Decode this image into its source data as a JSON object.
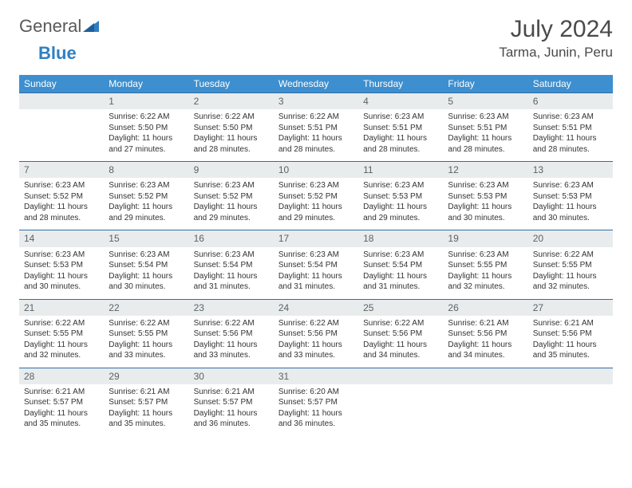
{
  "brand": {
    "word1": "General",
    "word2": "Blue"
  },
  "title": "July 2024",
  "location": "Tarma, Junin, Peru",
  "columns": [
    "Sunday",
    "Monday",
    "Tuesday",
    "Wednesday",
    "Thursday",
    "Friday",
    "Saturday"
  ],
  "colors": {
    "header_bg": "#3d8fcf",
    "header_text": "#ffffff",
    "daynum_bg": "#e9eced",
    "daynum_text": "#5c6266",
    "row_border": "#2f6ea6",
    "text": "#333333",
    "brand_gray": "#58595b",
    "brand_blue": "#2f7fc2",
    "page_bg": "#ffffff"
  },
  "weeks": [
    [
      {
        "n": ""
      },
      {
        "n": "1",
        "sr": "Sunrise: 6:22 AM",
        "ss": "Sunset: 5:50 PM",
        "d1": "Daylight: 11 hours",
        "d2": "and 27 minutes."
      },
      {
        "n": "2",
        "sr": "Sunrise: 6:22 AM",
        "ss": "Sunset: 5:50 PM",
        "d1": "Daylight: 11 hours",
        "d2": "and 28 minutes."
      },
      {
        "n": "3",
        "sr": "Sunrise: 6:22 AM",
        "ss": "Sunset: 5:51 PM",
        "d1": "Daylight: 11 hours",
        "d2": "and 28 minutes."
      },
      {
        "n": "4",
        "sr": "Sunrise: 6:23 AM",
        "ss": "Sunset: 5:51 PM",
        "d1": "Daylight: 11 hours",
        "d2": "and 28 minutes."
      },
      {
        "n": "5",
        "sr": "Sunrise: 6:23 AM",
        "ss": "Sunset: 5:51 PM",
        "d1": "Daylight: 11 hours",
        "d2": "and 28 minutes."
      },
      {
        "n": "6",
        "sr": "Sunrise: 6:23 AM",
        "ss": "Sunset: 5:51 PM",
        "d1": "Daylight: 11 hours",
        "d2": "and 28 minutes."
      }
    ],
    [
      {
        "n": "7",
        "sr": "Sunrise: 6:23 AM",
        "ss": "Sunset: 5:52 PM",
        "d1": "Daylight: 11 hours",
        "d2": "and 28 minutes."
      },
      {
        "n": "8",
        "sr": "Sunrise: 6:23 AM",
        "ss": "Sunset: 5:52 PM",
        "d1": "Daylight: 11 hours",
        "d2": "and 29 minutes."
      },
      {
        "n": "9",
        "sr": "Sunrise: 6:23 AM",
        "ss": "Sunset: 5:52 PM",
        "d1": "Daylight: 11 hours",
        "d2": "and 29 minutes."
      },
      {
        "n": "10",
        "sr": "Sunrise: 6:23 AM",
        "ss": "Sunset: 5:52 PM",
        "d1": "Daylight: 11 hours",
        "d2": "and 29 minutes."
      },
      {
        "n": "11",
        "sr": "Sunrise: 6:23 AM",
        "ss": "Sunset: 5:53 PM",
        "d1": "Daylight: 11 hours",
        "d2": "and 29 minutes."
      },
      {
        "n": "12",
        "sr": "Sunrise: 6:23 AM",
        "ss": "Sunset: 5:53 PM",
        "d1": "Daylight: 11 hours",
        "d2": "and 30 minutes."
      },
      {
        "n": "13",
        "sr": "Sunrise: 6:23 AM",
        "ss": "Sunset: 5:53 PM",
        "d1": "Daylight: 11 hours",
        "d2": "and 30 minutes."
      }
    ],
    [
      {
        "n": "14",
        "sr": "Sunrise: 6:23 AM",
        "ss": "Sunset: 5:53 PM",
        "d1": "Daylight: 11 hours",
        "d2": "and 30 minutes."
      },
      {
        "n": "15",
        "sr": "Sunrise: 6:23 AM",
        "ss": "Sunset: 5:54 PM",
        "d1": "Daylight: 11 hours",
        "d2": "and 30 minutes."
      },
      {
        "n": "16",
        "sr": "Sunrise: 6:23 AM",
        "ss": "Sunset: 5:54 PM",
        "d1": "Daylight: 11 hours",
        "d2": "and 31 minutes."
      },
      {
        "n": "17",
        "sr": "Sunrise: 6:23 AM",
        "ss": "Sunset: 5:54 PM",
        "d1": "Daylight: 11 hours",
        "d2": "and 31 minutes."
      },
      {
        "n": "18",
        "sr": "Sunrise: 6:23 AM",
        "ss": "Sunset: 5:54 PM",
        "d1": "Daylight: 11 hours",
        "d2": "and 31 minutes."
      },
      {
        "n": "19",
        "sr": "Sunrise: 6:23 AM",
        "ss": "Sunset: 5:55 PM",
        "d1": "Daylight: 11 hours",
        "d2": "and 32 minutes."
      },
      {
        "n": "20",
        "sr": "Sunrise: 6:22 AM",
        "ss": "Sunset: 5:55 PM",
        "d1": "Daylight: 11 hours",
        "d2": "and 32 minutes."
      }
    ],
    [
      {
        "n": "21",
        "sr": "Sunrise: 6:22 AM",
        "ss": "Sunset: 5:55 PM",
        "d1": "Daylight: 11 hours",
        "d2": "and 32 minutes."
      },
      {
        "n": "22",
        "sr": "Sunrise: 6:22 AM",
        "ss": "Sunset: 5:55 PM",
        "d1": "Daylight: 11 hours",
        "d2": "and 33 minutes."
      },
      {
        "n": "23",
        "sr": "Sunrise: 6:22 AM",
        "ss": "Sunset: 5:56 PM",
        "d1": "Daylight: 11 hours",
        "d2": "and 33 minutes."
      },
      {
        "n": "24",
        "sr": "Sunrise: 6:22 AM",
        "ss": "Sunset: 5:56 PM",
        "d1": "Daylight: 11 hours",
        "d2": "and 33 minutes."
      },
      {
        "n": "25",
        "sr": "Sunrise: 6:22 AM",
        "ss": "Sunset: 5:56 PM",
        "d1": "Daylight: 11 hours",
        "d2": "and 34 minutes."
      },
      {
        "n": "26",
        "sr": "Sunrise: 6:21 AM",
        "ss": "Sunset: 5:56 PM",
        "d1": "Daylight: 11 hours",
        "d2": "and 34 minutes."
      },
      {
        "n": "27",
        "sr": "Sunrise: 6:21 AM",
        "ss": "Sunset: 5:56 PM",
        "d1": "Daylight: 11 hours",
        "d2": "and 35 minutes."
      }
    ],
    [
      {
        "n": "28",
        "sr": "Sunrise: 6:21 AM",
        "ss": "Sunset: 5:57 PM",
        "d1": "Daylight: 11 hours",
        "d2": "and 35 minutes."
      },
      {
        "n": "29",
        "sr": "Sunrise: 6:21 AM",
        "ss": "Sunset: 5:57 PM",
        "d1": "Daylight: 11 hours",
        "d2": "and 35 minutes."
      },
      {
        "n": "30",
        "sr": "Sunrise: 6:21 AM",
        "ss": "Sunset: 5:57 PM",
        "d1": "Daylight: 11 hours",
        "d2": "and 36 minutes."
      },
      {
        "n": "31",
        "sr": "Sunrise: 6:20 AM",
        "ss": "Sunset: 5:57 PM",
        "d1": "Daylight: 11 hours",
        "d2": "and 36 minutes."
      },
      {
        "n": ""
      },
      {
        "n": ""
      },
      {
        "n": ""
      }
    ]
  ]
}
